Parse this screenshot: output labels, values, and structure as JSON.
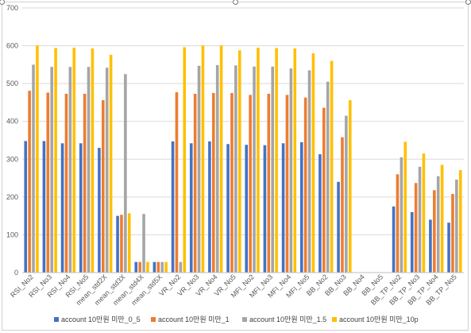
{
  "chart_data": {
    "type": "bar",
    "title": "",
    "xlabel": "",
    "ylabel": "",
    "ylim": [
      0,
      700
    ],
    "yticks": [
      0,
      100,
      200,
      300,
      400,
      500,
      600,
      700
    ],
    "grid": true,
    "legend_position": "bottom",
    "categories": [
      "RSI_No2",
      "RSI_No3",
      "RSI_No4",
      "RSI_No5",
      "mean_std2X",
      "mean_std3X",
      "mean_std4X",
      "mean_std5X",
      "VR_No2",
      "VR_No3",
      "VR_No4",
      "VR_No5",
      "MFI_No2",
      "MFI_No3",
      "MFI_No4",
      "MFI_No5",
      "BB_No2",
      "BB_No3",
      "BB_No4",
      "BB_No5",
      "BB_TP_No2",
      "BB_TP_No3",
      "BB_TP_No4",
      "BB_TP_No5"
    ],
    "series": [
      {
        "name": "account 10만원 미만_0_5",
        "color": "#4472C4",
        "values": [
          348,
          348,
          342,
          342,
          330,
          150,
          28,
          28,
          347,
          342,
          347,
          340,
          338,
          337,
          342,
          345,
          313,
          240,
          0,
          0,
          175,
          160,
          140,
          132
        ]
      },
      {
        "name": "account 10만원 미만_1",
        "color": "#ED7D31",
        "values": [
          481,
          476,
          473,
          473,
          456,
          153,
          28,
          28,
          477,
          473,
          475,
          475,
          470,
          473,
          470,
          463,
          436,
          358,
          0,
          0,
          260,
          237,
          218,
          208
        ]
      },
      {
        "name": "account 10만원 미만_1.5",
        "color": "#A5A5A5",
        "values": [
          550,
          544,
          544,
          544,
          542,
          525,
          155,
          28,
          28,
          547,
          549,
          548,
          545,
          545,
          540,
          535,
          505,
          415,
          0,
          0,
          305,
          280,
          255,
          246
        ]
      },
      {
        "name": "account 10만원 미만_10p",
        "color": "#FFC000",
        "values": [
          601,
          594,
          595,
          593,
          576,
          157,
          28,
          28,
          596,
          601,
          601,
          588,
          595,
          594,
          593,
          580,
          560,
          456,
          0,
          0,
          346,
          315,
          285,
          271
        ]
      }
    ]
  }
}
